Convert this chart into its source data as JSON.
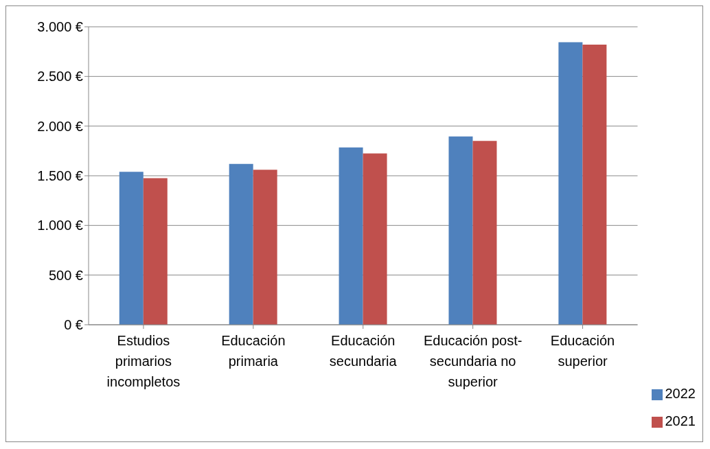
{
  "chart_data": {
    "type": "bar",
    "categories": [
      "Estudios primarios incompletos",
      "Educación primaria",
      "Educación secundaria",
      "Educación post-secundaria no superior",
      "Educación superior"
    ],
    "series": [
      {
        "name": "2022",
        "color": "#4f81bd",
        "values": [
          1540,
          1620,
          1785,
          1895,
          2845
        ]
      },
      {
        "name": "2021",
        "color": "#c0504d",
        "values": [
          1475,
          1560,
          1725,
          1850,
          2820
        ]
      }
    ],
    "ylim": [
      0,
      3000
    ],
    "yticks": [
      {
        "value": 0,
        "label": "0 €"
      },
      {
        "value": 500,
        "label": "500 €"
      },
      {
        "value": 1000,
        "label": "1.000 €"
      },
      {
        "value": 1500,
        "label": "1.500 €"
      },
      {
        "value": 2000,
        "label": "2.000 €"
      },
      {
        "value": 2500,
        "label": "2.500 €"
      },
      {
        "value": 3000,
        "label": "3.000 €"
      }
    ],
    "grid": "y",
    "legend": "bottom right"
  }
}
